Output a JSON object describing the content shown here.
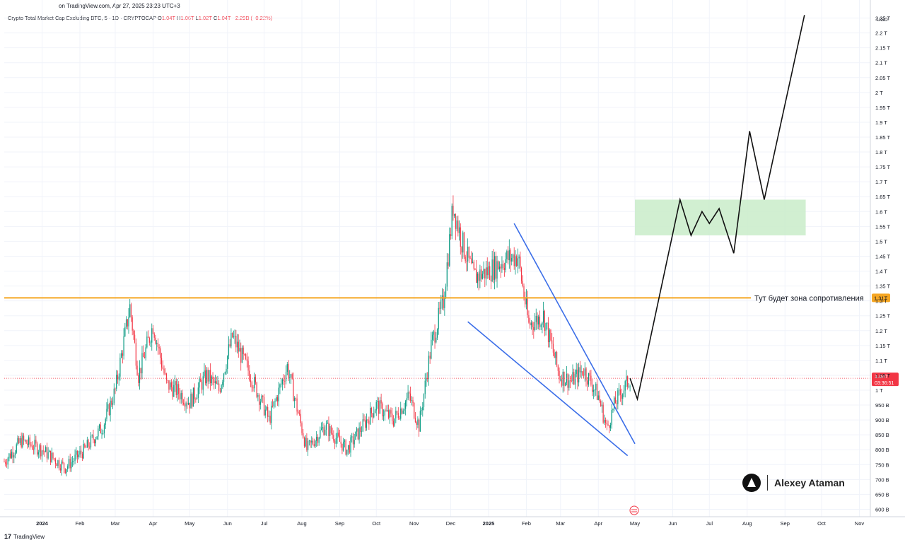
{
  "header": {
    "source": "on TradingView.com, Apr 27, 2025 23:23 UTC+3",
    "symbol": "Crypto Total Market Cap Excluding BTC, 5 · 1D · CRYPTOCAP",
    "o_label": "O",
    "o_value": "1.04T",
    "h_label": "H",
    "h_value": "1.06T",
    "l_label": "L",
    "l_value": "1.02T",
    "c_label": "C",
    "c_value": "1.04T",
    "change": "−2.29B (−0.22%)"
  },
  "footer": {
    "brand": "TradingView",
    "logo_text": "17"
  },
  "watermark": {
    "name": "Alexey Ataman"
  },
  "colors": {
    "up": "#089981",
    "down": "#f23645",
    "resistance": "#f5a623",
    "channel": "#3b6ee8",
    "zone": "#c9ecc9",
    "path": "#111111"
  },
  "chart_data": {
    "type": "candlestick",
    "currency": "USD",
    "y_ticks": [
      "600 B",
      "650 B",
      "700 B",
      "750 B",
      "800 B",
      "850 B",
      "900 B",
      "950 B",
      "1 T",
      "1.05 T",
      "1.1 T",
      "1.15 T",
      "1.2 T",
      "1.25 T",
      "1.3 T",
      "1.35 T",
      "1.4 T",
      "1.45 T",
      "1.5 T",
      "1.55 T",
      "1.6 T",
      "1.65 T",
      "1.7 T",
      "1.75 T",
      "1.8 T",
      "1.85 T",
      "1.9 T",
      "1.95 T",
      "2 T",
      "2.05 T",
      "2.1 T",
      "2.15 T",
      "2.2 T",
      "2.25 T"
    ],
    "y_range": [
      0.575,
      2.275
    ],
    "x_labels": [
      "2024",
      "Feb",
      "Mar",
      "Apr",
      "May",
      "Jun",
      "Jul",
      "Aug",
      "Sep",
      "Oct",
      "Nov",
      "Dec",
      "2025",
      "Feb",
      "Mar",
      "Apr",
      "May",
      "Jun",
      "Jul",
      "Aug",
      "Sep",
      "Oct",
      "Nov"
    ],
    "x_range": [
      "2023-12-01",
      "2025-11-10"
    ],
    "price_path": [
      [
        "2023-12-01",
        0.76
      ],
      [
        "2023-12-15",
        0.83
      ],
      [
        "2024-01-01",
        0.8
      ],
      [
        "2024-01-20",
        0.74
      ],
      [
        "2024-02-05",
        0.8
      ],
      [
        "2024-02-20",
        0.88
      ],
      [
        "2024-03-01",
        1.0
      ],
      [
        "2024-03-13",
        1.28
      ],
      [
        "2024-03-20",
        1.05
      ],
      [
        "2024-04-01",
        1.22
      ],
      [
        "2024-04-12",
        1.02
      ],
      [
        "2024-04-20",
        1.0
      ],
      [
        "2024-05-01",
        0.96
      ],
      [
        "2024-05-15",
        1.05
      ],
      [
        "2024-05-25",
        1.0
      ],
      [
        "2024-06-05",
        1.18
      ],
      [
        "2024-06-20",
        1.05
      ],
      [
        "2024-07-05",
        0.9
      ],
      [
        "2024-07-20",
        1.08
      ],
      [
        "2024-08-05",
        0.8
      ],
      [
        "2024-08-20",
        0.88
      ],
      [
        "2024-09-07",
        0.8
      ],
      [
        "2024-09-20",
        0.88
      ],
      [
        "2024-10-01",
        0.95
      ],
      [
        "2024-10-15",
        0.9
      ],
      [
        "2024-10-28",
        0.98
      ],
      [
        "2024-11-05",
        0.88
      ],
      [
        "2024-11-15",
        1.15
      ],
      [
        "2024-11-25",
        1.3
      ],
      [
        "2024-12-03",
        1.62
      ],
      [
        "2024-12-10",
        1.5
      ],
      [
        "2024-12-20",
        1.38
      ],
      [
        "2025-01-01",
        1.4
      ],
      [
        "2025-01-15",
        1.44
      ],
      [
        "2025-01-25",
        1.45
      ],
      [
        "2025-02-03",
        1.22
      ],
      [
        "2025-02-15",
        1.25
      ],
      [
        "2025-02-28",
        1.05
      ],
      [
        "2025-03-10",
        1.03
      ],
      [
        "2025-03-20",
        1.07
      ],
      [
        "2025-04-01",
        0.98
      ],
      [
        "2025-04-08",
        0.87
      ],
      [
        "2025-04-15",
        0.96
      ],
      [
        "2025-04-27",
        1.04
      ]
    ],
    "last_price": "1.04T",
    "last_price_timer": "03:36:51",
    "resistance": {
      "value": 1.31,
      "label": "Тут будет зона сопротивления",
      "tag": "1.31T"
    },
    "wedge": {
      "upper": [
        [
          "2025-01-22",
          1.56
        ],
        [
          "2025-05-01",
          0.82
        ]
      ],
      "lower": [
        [
          "2024-12-15",
          1.23
        ],
        [
          "2025-04-25",
          0.78
        ]
      ]
    },
    "target_zone": {
      "from": "2025-05-01",
      "to": "2025-09-18",
      "low": 1.52,
      "high": 1.64
    },
    "projection": [
      [
        "2025-04-27",
        1.04
      ],
      [
        "2025-05-03",
        0.97
      ],
      [
        "2025-06-07",
        1.64
      ],
      [
        "2025-06-16",
        1.52
      ],
      [
        "2025-06-25",
        1.6
      ],
      [
        "2025-07-01",
        1.56
      ],
      [
        "2025-07-09",
        1.61
      ],
      [
        "2025-07-21",
        1.46
      ],
      [
        "2025-08-03",
        1.87
      ],
      [
        "2025-08-15",
        1.64
      ],
      [
        "2025-09-17",
        2.26
      ]
    ]
  }
}
